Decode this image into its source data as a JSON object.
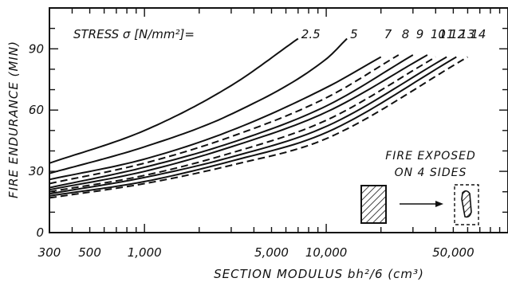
{
  "chart_data": {
    "type": "line",
    "title": "",
    "xlabel": "SECTION  MODULUS bh²/6 (cm³)",
    "ylabel": "FIRE  ENDURANCE (MIN)",
    "x_scale": "log",
    "xlim": [
      300,
      100000
    ],
    "ylim": [
      0,
      110
    ],
    "x_tick_values": [
      300,
      500,
      1000,
      5000,
      10000,
      50000
    ],
    "x_tick_labels": [
      "300",
      "500",
      "1,000",
      "5,000",
      "10,000",
      "50,000"
    ],
    "y_tick_values": [
      0,
      30,
      60,
      90
    ],
    "y_tick_labels": [
      "0",
      "30",
      "60",
      "90"
    ],
    "grid": false,
    "legend_title": "STRESS σ [N/mm²]=",
    "annotation": [
      "FIRE  EXPOSED",
      "ON 4 SIDES"
    ],
    "series": [
      {
        "name": "2.5",
        "style": "solid",
        "x": [
          300,
          1000,
          3000,
          7000
        ],
        "y": [
          34,
          50,
          72,
          95
        ]
      },
      {
        "name": "5",
        "style": "solid",
        "x": [
          300,
          1000,
          3000,
          10000,
          13000
        ],
        "y": [
          29,
          42,
          58,
          85,
          95
        ]
      },
      {
        "name": "7",
        "style": "solid",
        "x": [
          300,
          1000,
          3000,
          10000,
          20000
        ],
        "y": [
          26,
          36,
          50,
          71,
          86
        ]
      },
      {
        "name": "8",
        "style": "dashed",
        "x": [
          300,
          1000,
          3000,
          10000,
          25000
        ],
        "y": [
          24,
          34,
          47,
          66,
          87
        ]
      },
      {
        "name": "9",
        "style": "solid",
        "x": [
          300,
          1000,
          3000,
          10000,
          30000
        ],
        "y": [
          22,
          32,
          44,
          62,
          87
        ]
      },
      {
        "name": "10",
        "style": "solid",
        "x": [
          300,
          1000,
          3000,
          10000,
          36000
        ],
        "y": [
          21,
          30,
          42,
          59,
          87
        ]
      },
      {
        "name": "11",
        "style": "dashed",
        "x": [
          300,
          1000,
          3000,
          10000,
          40000
        ],
        "y": [
          20,
          28,
          39,
          55,
          86
        ]
      },
      {
        "name": "12",
        "style": "solid",
        "x": [
          300,
          1000,
          3000,
          10000,
          46000
        ],
        "y": [
          19,
          27,
          37,
          52,
          86
        ]
      },
      {
        "name": "13",
        "style": "solid",
        "x": [
          300,
          1000,
          3000,
          10000,
          52000
        ],
        "y": [
          18,
          25,
          35,
          49,
          86
        ]
      },
      {
        "name": "14",
        "style": "dashed",
        "x": [
          300,
          1000,
          3000,
          10000,
          60000
        ],
        "y": [
          17,
          24,
          33,
          46,
          86
        ]
      }
    ]
  }
}
